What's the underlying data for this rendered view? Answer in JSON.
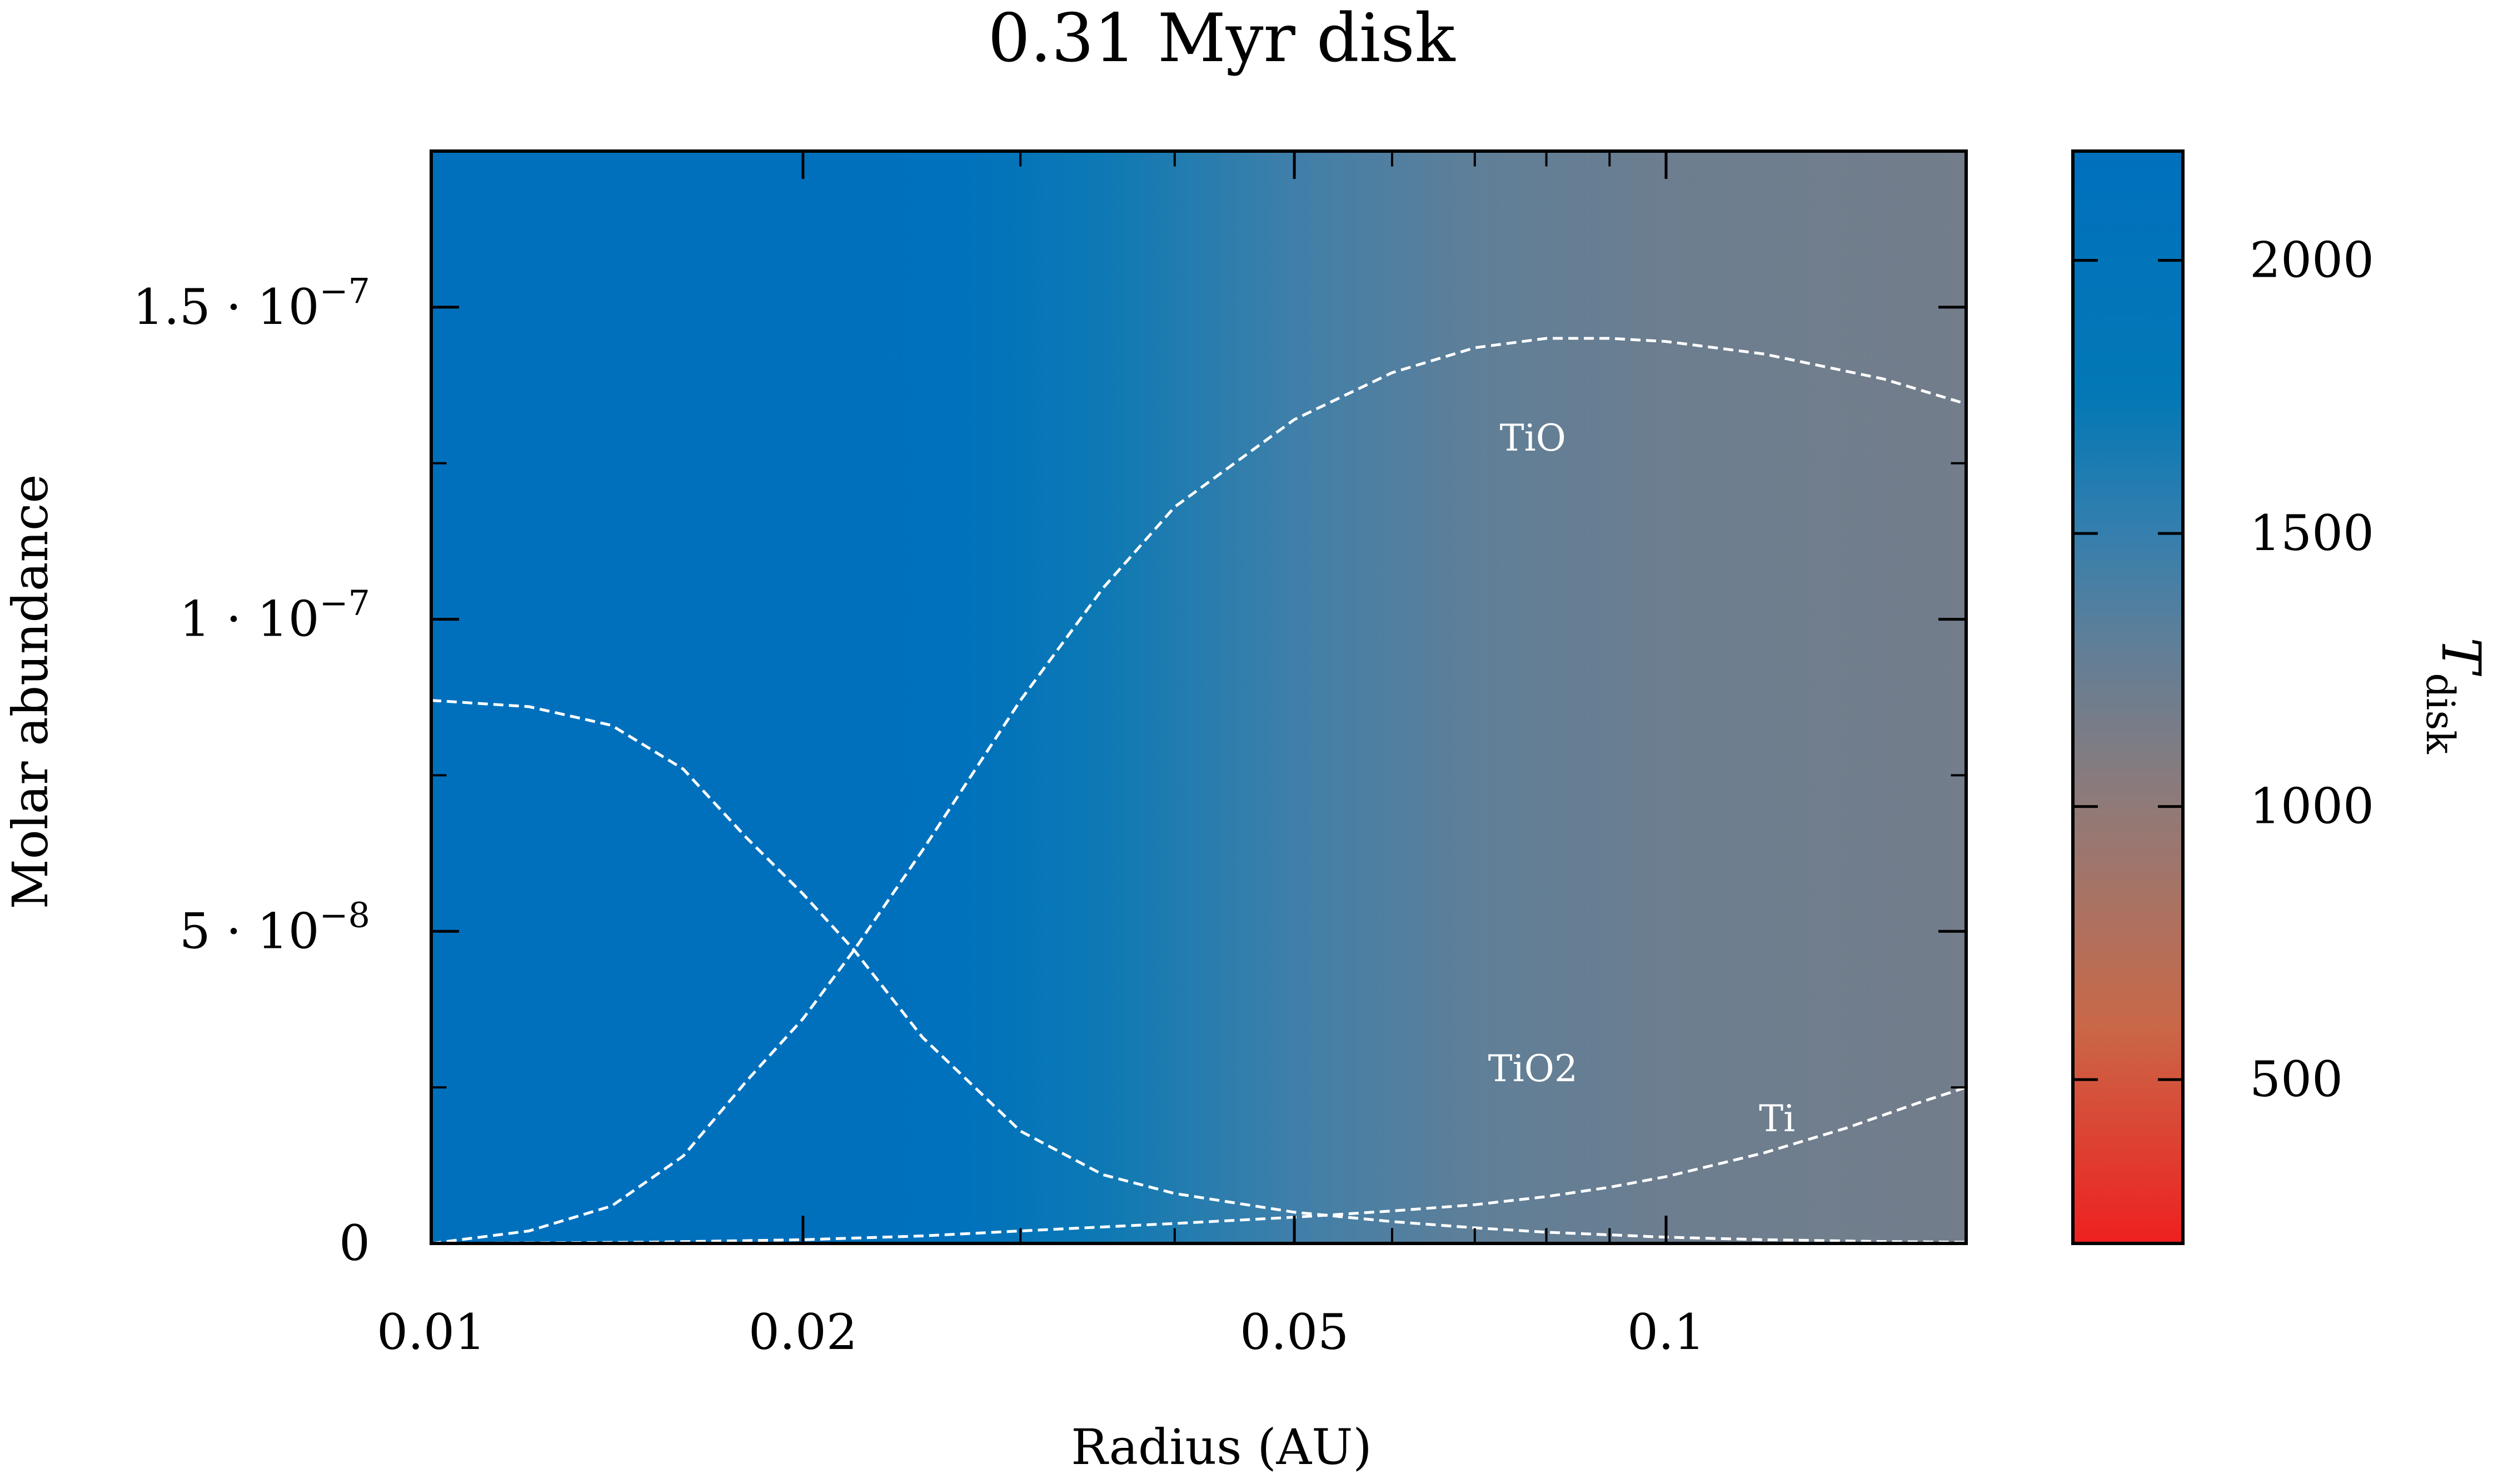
{
  "chart_data": {
    "type": "line",
    "title": "0.31 Myr disk",
    "xlabel": "Radius (AU)",
    "ylabel": "Molar abundance",
    "x_scale": "log",
    "xlim": [
      0.01,
      0.175
    ],
    "ylim": [
      0,
      1.75e-07
    ],
    "x_ticks": [
      {
        "value": 0.01,
        "label": "0.01"
      },
      {
        "value": 0.02,
        "label": "0.02"
      },
      {
        "value": 0.05,
        "label": "0.05"
      },
      {
        "value": 0.1,
        "label": "0.1"
      }
    ],
    "y_ticks": [
      {
        "value": 0,
        "mantissa": "0",
        "exponent": ""
      },
      {
        "value": 5e-08,
        "mantissa": "5 · 10",
        "exponent": "−8"
      },
      {
        "value": 1e-07,
        "mantissa": "1 · 10",
        "exponent": "−7"
      },
      {
        "value": 1.5e-07,
        "mantissa": "1.5 · 10",
        "exponent": "−7"
      }
    ],
    "background": {
      "quantity": "T_disk",
      "description": "disk temperature as a function of radius, shown by background colour",
      "radius": [
        0.01,
        0.02,
        0.027,
        0.035,
        0.05,
        0.07,
        0.1,
        0.175
      ],
      "temperature": [
        2230,
        2200,
        2150,
        1700,
        1450,
        1300,
        1220,
        1180
      ]
    },
    "colorbar": {
      "label": "T",
      "label_subscript": "disk",
      "range": [
        200,
        2200
      ],
      "ticks": [
        {
          "value": 500,
          "label": "500"
        },
        {
          "value": 1000,
          "label": "1000"
        },
        {
          "value": 1500,
          "label": "1500"
        },
        {
          "value": 2000,
          "label": "2000"
        }
      ],
      "colors": [
        {
          "value": 200,
          "color": "#ee2020"
        },
        {
          "value": 600,
          "color": "#c96848"
        },
        {
          "value": 1000,
          "color": "#907a78"
        },
        {
          "value": 1300,
          "color": "#5f7f98"
        },
        {
          "value": 1500,
          "color": "#357fae"
        },
        {
          "value": 1750,
          "color": "#0378b5"
        },
        {
          "value": 2200,
          "color": "#0070bd"
        }
      ]
    },
    "series": [
      {
        "name": "TiO",
        "style": "dashed",
        "color": "#ffffff",
        "x": [
          0.01,
          0.012,
          0.014,
          0.016,
          0.018,
          0.02,
          0.022,
          0.025,
          0.03,
          0.035,
          0.04,
          0.05,
          0.06,
          0.07,
          0.08,
          0.09,
          0.1,
          0.12,
          0.15,
          0.175
        ],
        "y": [
          0.0,
          2e-09,
          6e-09,
          1.4e-08,
          2.6e-08,
          3.6e-08,
          4.7e-08,
          6.3e-08,
          8.7e-08,
          1.05e-07,
          1.18e-07,
          1.32e-07,
          1.395e-07,
          1.435e-07,
          1.45e-07,
          1.45e-07,
          1.445e-07,
          1.425e-07,
          1.385e-07,
          1.345e-07
        ]
      },
      {
        "name": "TiO2",
        "style": "dashed",
        "color": "#ffffff",
        "x": [
          0.01,
          0.012,
          0.014,
          0.016,
          0.018,
          0.02,
          0.022,
          0.025,
          0.03,
          0.035,
          0.04,
          0.05,
          0.06,
          0.07,
          0.08,
          0.1,
          0.12,
          0.15,
          0.175
        ],
        "y": [
          8.7e-08,
          8.6e-08,
          8.3e-08,
          7.6e-08,
          6.5e-08,
          5.6e-08,
          4.7e-08,
          3.3e-08,
          1.8e-08,
          1.1e-08,
          8e-09,
          5e-09,
          3.5e-09,
          2.5e-09,
          1.8e-09,
          1e-09,
          6e-10,
          3e-10,
          2e-10
        ]
      },
      {
        "name": "Ti",
        "style": "dashed",
        "color": "#ffffff",
        "x": [
          0.01,
          0.015,
          0.02,
          0.025,
          0.03,
          0.04,
          0.05,
          0.06,
          0.07,
          0.08,
          0.09,
          0.1,
          0.12,
          0.14,
          0.16,
          0.175
        ],
        "y": [
          0.0,
          2e-10,
          6e-10,
          1.2e-09,
          2e-09,
          3.2e-09,
          4.2e-09,
          5.2e-09,
          6.2e-09,
          7.5e-09,
          9e-09,
          1.07e-08,
          1.45e-08,
          1.85e-08,
          2.25e-08,
          2.5e-08
        ]
      }
    ],
    "annotations": [
      {
        "text": "TiO",
        "x": 0.078,
        "y": 1.27e-07
      },
      {
        "text": "TiO2",
        "x": 0.078,
        "y": 2.6e-08
      },
      {
        "text": "Ti",
        "x": 0.123,
        "y": 1.8e-08
      }
    ]
  }
}
